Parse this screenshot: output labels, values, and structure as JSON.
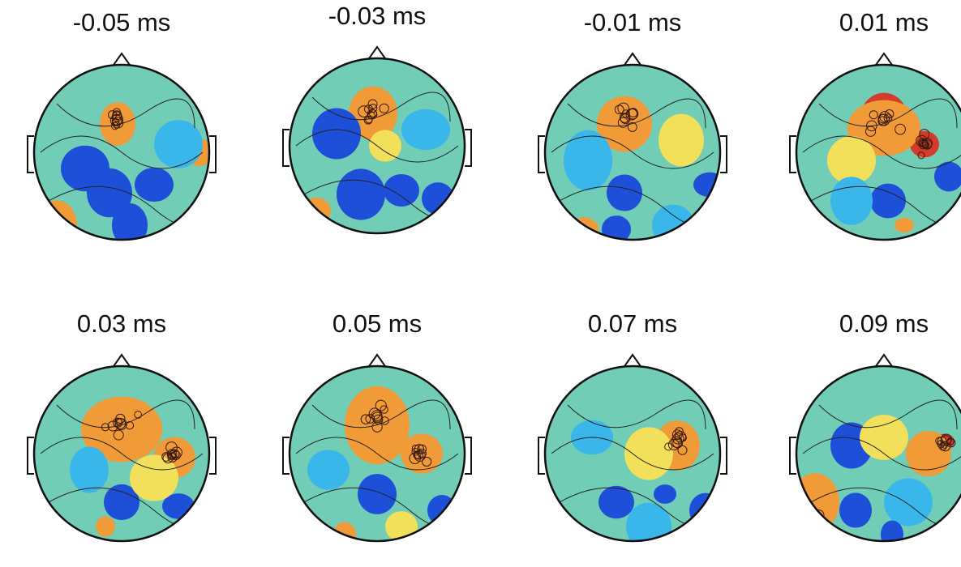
{
  "panels": [
    {
      "label": "-0.05 ms",
      "accent": "#d43b2b"
    },
    {
      "label": "-0.03 ms",
      "accent": "#d43b2b"
    },
    {
      "label": "-0.01 ms",
      "accent": "#d43b2b"
    },
    {
      "label": "0.01 ms",
      "accent": "#d43b2b"
    },
    {
      "label": "0.03 ms",
      "accent": "#d43b2b"
    },
    {
      "label": "0.05 ms",
      "accent": "#d43b2b"
    },
    {
      "label": "0.07 ms",
      "accent": "#d43b2b"
    },
    {
      "label": "0.09 ms",
      "accent": "#d43b2b"
    }
  ],
  "colors": {
    "blue": "#1e4fd8",
    "cyan": "#39b6ea",
    "green": "#9ee08a",
    "yellow": "#f3e05a",
    "orange": "#f19a38",
    "red": "#d43b2b"
  }
}
